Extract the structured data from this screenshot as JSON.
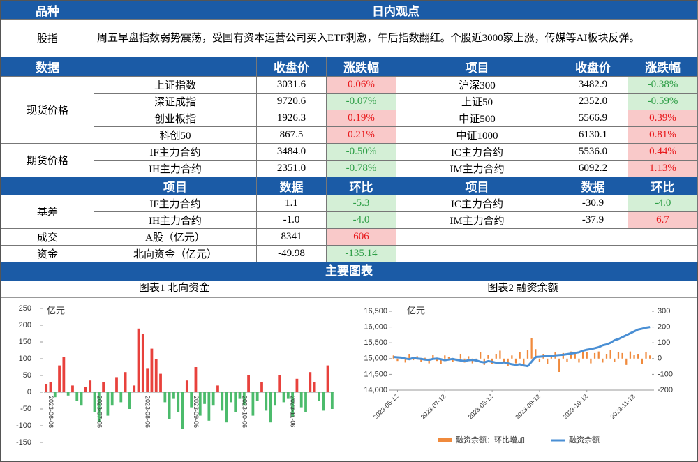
{
  "header": {
    "category": "品种",
    "view": "日内观点"
  },
  "view_row": {
    "label": "股指",
    "text": "周五早盘指数弱势震荡，受国有资本运营公司买入ETF刺激，午后指数翻红。个股近3000家上涨，传媒等AI板块反弹。"
  },
  "market_table": {
    "header": [
      "数据",
      "收盘价",
      "涨跌幅",
      "项目",
      "收盘价",
      "涨跌幅"
    ],
    "groups": [
      {
        "label": "现货价格",
        "rows": [
          [
            "上证指数",
            "3031.6",
            "0.06%",
            "沪深300",
            "3482.9",
            "-0.38%"
          ],
          [
            "深证成指",
            "9720.6",
            "-0.07%",
            "上证50",
            "2352.0",
            "-0.59%"
          ],
          [
            "创业板指",
            "1926.3",
            "0.19%",
            "中证500",
            "5566.9",
            "0.39%"
          ],
          [
            "科创50",
            "867.5",
            "0.21%",
            "中证1000",
            "6130.1",
            "0.81%"
          ]
        ]
      },
      {
        "label": "期货价格",
        "rows": [
          [
            "IF主力合约",
            "3484.0",
            "-0.50%",
            "IC主力合约",
            "5536.0",
            "0.44%"
          ],
          [
            "IH主力合约",
            "2351.0",
            "-0.78%",
            "IM主力合约",
            "6092.2",
            "1.13%"
          ]
        ]
      }
    ]
  },
  "basis_table": {
    "header": [
      "项目",
      "数据",
      "环比",
      "项目",
      "数据",
      "环比"
    ],
    "groups": [
      {
        "label": "基差",
        "rows": [
          [
            "IF主力合约",
            "1.1",
            "-5.3",
            "IC主力合约",
            "-30.9",
            "-4.0"
          ],
          [
            "IH主力合约",
            "-1.0",
            "-4.0",
            "IM主力合约",
            "-37.9",
            "6.7"
          ]
        ]
      },
      {
        "label": "成交",
        "rows": [
          [
            "A股（亿元）",
            "8341",
            "606"
          ]
        ]
      },
      {
        "label": "资金",
        "rows": [
          [
            "北向资金（亿元）",
            "-49.98",
            "-135.14"
          ]
        ]
      }
    ]
  },
  "section_title": "主要图表",
  "cell_colors": {
    "up_bg": "#f9c9c9",
    "up_text": "#e8191c",
    "down_bg": "#d4efd6",
    "down_text": "#2e9e46"
  },
  "chart_data": [
    {
      "type": "bar",
      "title": "图表1 北向资金",
      "y_label": "亿元",
      "categories": [
        null,
        "2023-06-06",
        null,
        null,
        null,
        null,
        null,
        null,
        null,
        null,
        null,
        null,
        "2023-07-06",
        null,
        null,
        null,
        null,
        null,
        null,
        null,
        null,
        null,
        null,
        "2023-08-06",
        null,
        null,
        null,
        null,
        null,
        null,
        null,
        null,
        null,
        null,
        "2023-09-06",
        null,
        null,
        null,
        null,
        null,
        null,
        null,
        null,
        null,
        null,
        "2023-10-06",
        null,
        null,
        null,
        null,
        null,
        null,
        null,
        null,
        null,
        null,
        "2023-11-06",
        null,
        null,
        null,
        null,
        null,
        null,
        null,
        null,
        null
      ],
      "values": [
        25,
        30,
        -15,
        80,
        105,
        -10,
        20,
        -25,
        -40,
        15,
        35,
        -60,
        -90,
        30,
        -70,
        -40,
        45,
        -30,
        60,
        -50,
        20,
        190,
        175,
        70,
        130,
        100,
        55,
        -30,
        -80,
        -20,
        -60,
        -110,
        35,
        -45,
        75,
        -70,
        -35,
        -85,
        -40,
        20,
        -55,
        -90,
        -30,
        -60,
        -20,
        -40,
        50,
        -70,
        -25,
        30,
        -55,
        -90,
        -40,
        50,
        -30,
        -20,
        -75,
        40,
        -45,
        -60,
        60,
        30,
        -25,
        -55,
        80,
        -50
      ],
      "color_positive": "#e8413c",
      "color_negative": "#4cbb6c",
      "ylim": [
        -150,
        250
      ],
      "yticks": [
        -150,
        -100,
        -50,
        0,
        50,
        100,
        150,
        200,
        250
      ]
    },
    {
      "type": "combo",
      "title": "图表2 融资余额",
      "y_label": "亿元",
      "categories": [
        null,
        "2023-06-12",
        null,
        null,
        null,
        null,
        null,
        null,
        null,
        null,
        null,
        null,
        null,
        "2023-07-12",
        null,
        null,
        null,
        null,
        null,
        null,
        null,
        null,
        null,
        null,
        null,
        "2023-08-12",
        null,
        null,
        null,
        null,
        null,
        null,
        null,
        null,
        null,
        null,
        null,
        "2023-09-12",
        null,
        null,
        null,
        null,
        null,
        null,
        null,
        null,
        null,
        null,
        null,
        "2023-10-12",
        null,
        null,
        null,
        null,
        null,
        null,
        null,
        null,
        null,
        null,
        null,
        "2023-11-12",
        null,
        null,
        null,
        null
      ],
      "series": [
        {
          "name": "融资余额：环比增加",
          "color": "#f08a3c",
          "type": "bar",
          "axis": "y2",
          "values": [
            20,
            -15,
            10,
            -25,
            30,
            -10,
            15,
            -20,
            5,
            -30,
            25,
            -15,
            -35,
            20,
            10,
            -20,
            -10,
            30,
            -25,
            15,
            -30,
            -20,
            40,
            -40,
            25,
            -35,
            30,
            50,
            -25,
            -45,
            20,
            -30,
            40,
            -40,
            55,
            130,
            60,
            -20,
            30,
            -35,
            25,
            40,
            -85,
            35,
            -20,
            45,
            30,
            -25,
            50,
            40,
            -30,
            35,
            45,
            -25,
            30,
            55,
            -20,
            40,
            35,
            -40,
            45,
            25,
            30,
            -35,
            40,
            20
          ]
        },
        {
          "name": "融资余额",
          "color": "#4a8fd4",
          "type": "line",
          "values": [
            15050,
            15040,
            15030,
            15000,
            14980,
            15020,
            15000,
            14990,
            14970,
            14960,
            14990,
            15000,
            14980,
            14950,
            14970,
            14990,
            14960,
            14940,
            14920,
            14950,
            14960,
            14940,
            14900,
            14880,
            14920,
            14900,
            14870,
            14860,
            14880,
            14850,
            14820,
            14800,
            14820,
            14780,
            14760,
            14900,
            15050,
            15060,
            15070,
            15080,
            15090,
            15100,
            15110,
            15120,
            15140,
            15160,
            15180,
            15200,
            15250,
            15280,
            15300,
            15330,
            15360,
            15420,
            15450,
            15500,
            15580,
            15620,
            15680,
            15740,
            15800,
            15860,
            15920,
            15950,
            15980,
            16000
          ]
        }
      ],
      "ylim": [
        14000,
        16500
      ],
      "yticks": [
        {
          "value": 14000,
          "label": "14,000"
        },
        {
          "value": 14500,
          "label": "14,500"
        },
        {
          "value": 15000,
          "label": "15,000"
        },
        {
          "value": 15500,
          "label": "15,500"
        },
        {
          "value": 16000,
          "label": "16,000"
        },
        {
          "value": 16500,
          "label": "16,500"
        }
      ],
      "y2lim": [
        -200,
        300
      ],
      "y2ticks": [
        -200,
        -100,
        0,
        100,
        200,
        300
      ]
    }
  ]
}
